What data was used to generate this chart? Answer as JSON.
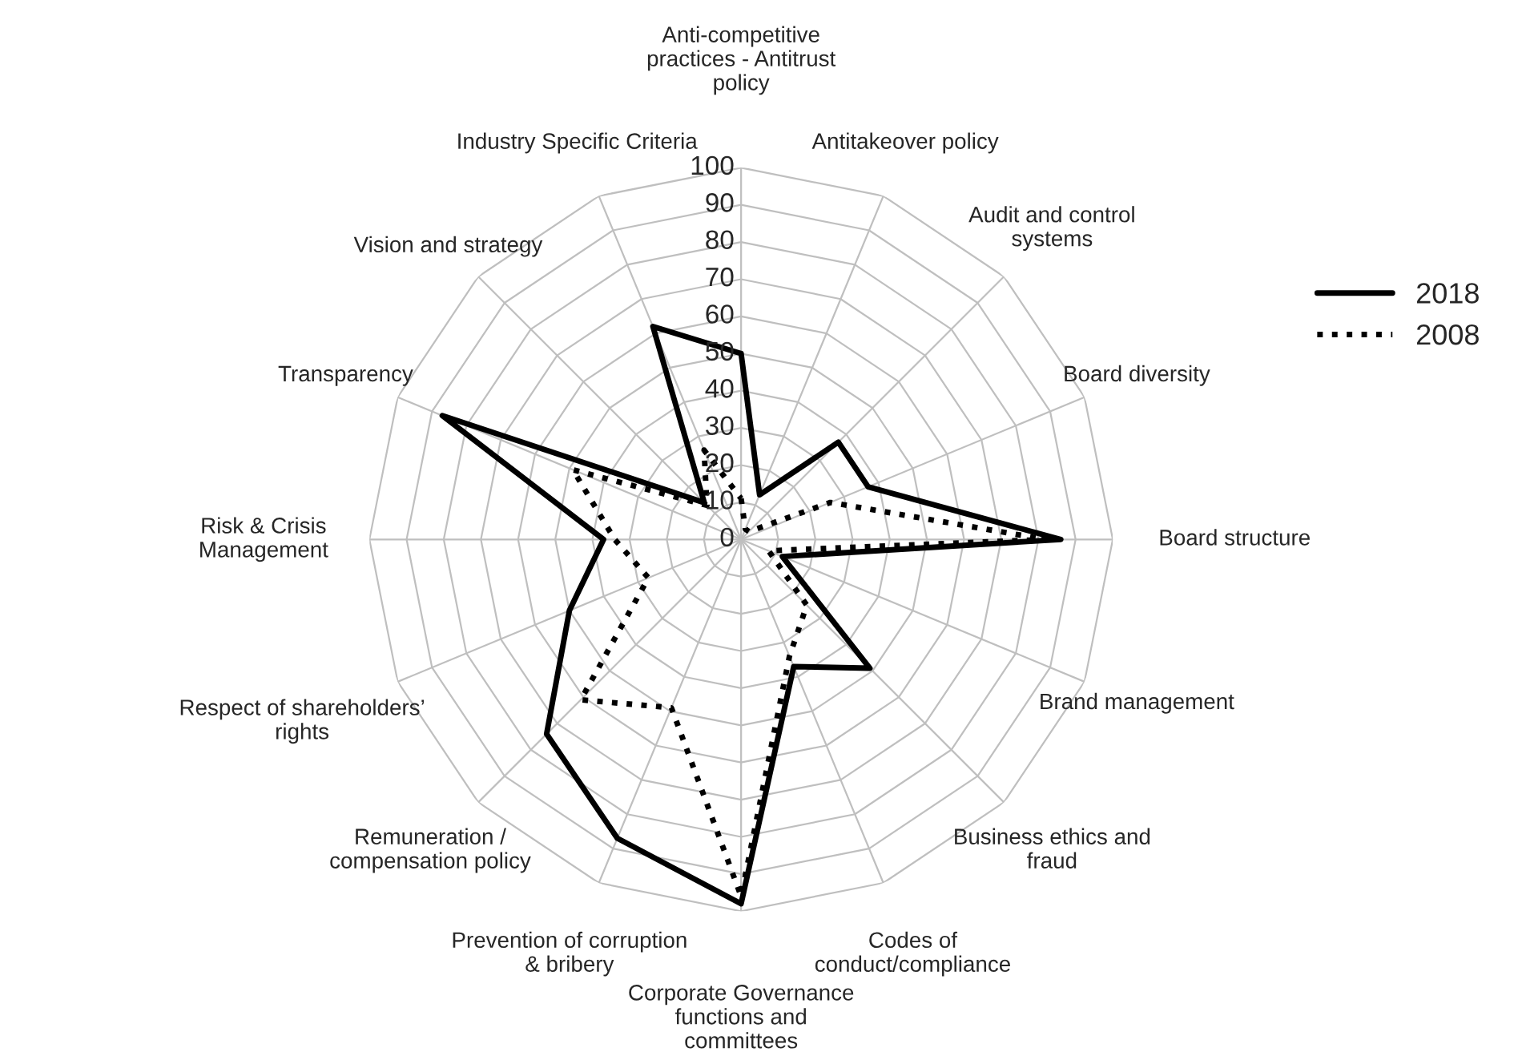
{
  "chart_data": {
    "type": "radar",
    "categories": [
      "Anti-competitive\npractices - Antitrust\npolicy",
      "Antitakeover policy",
      "Audit and control\nsystems",
      "Board diversity",
      "Board structure",
      "Brand management",
      "Business ethics and\nfraud",
      "Codes of\nconduct/compliance",
      "Corporate Governance\nfunctions and\ncommittees",
      "Prevention of corruption\n& bribery",
      "Remuneration /\ncompensation policy",
      "Respect of shareholders’\nrights",
      "Risk & Crisis\nManagement",
      "Transparency",
      "Vision and strategy",
      "Industry Specific Criteria"
    ],
    "series": [
      {
        "name": "2018",
        "color": "#000000",
        "line_style": "solid",
        "values": [
          50,
          13,
          37,
          37,
          86,
          12,
          49,
          37,
          98,
          87,
          74,
          50,
          37,
          87,
          14,
          62
        ]
      },
      {
        "name": "2008",
        "color": "#000000",
        "line_style": "dotted",
        "values": [
          11,
          3,
          3,
          26,
          82,
          8,
          25,
          34,
          96,
          49,
          61,
          27,
          34,
          49,
          13,
          26
        ]
      }
    ],
    "ylim": [
      0,
      100
    ],
    "yticks": [
      0,
      10,
      20,
      30,
      40,
      50,
      60,
      70,
      80,
      90,
      100
    ],
    "grid": true,
    "legend": "right"
  }
}
